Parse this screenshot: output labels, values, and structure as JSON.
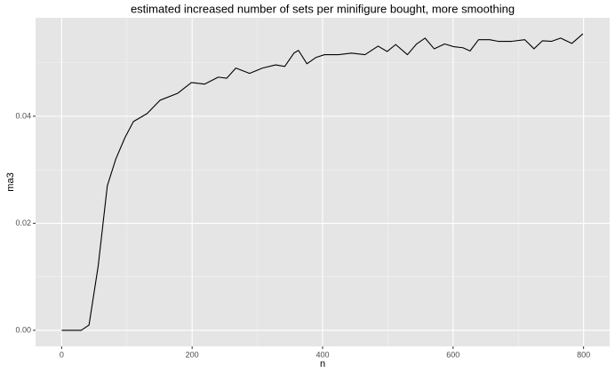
{
  "chart_data": {
    "type": "line",
    "title": "estimated increased number of sets per minifigure bought, more smoothing",
    "x_label": "n",
    "y_label": "ma3",
    "x": [
      0,
      30,
      42,
      56,
      70,
      83,
      97,
      110,
      131,
      151,
      178,
      199,
      219,
      240,
      253,
      267,
      288,
      308,
      328,
      342,
      356,
      363,
      376,
      390,
      403,
      424,
      444,
      465,
      485,
      499,
      512,
      530,
      544,
      557,
      571,
      587,
      601,
      615,
      626,
      639,
      656,
      669,
      690,
      710,
      724,
      737,
      751,
      765,
      782,
      799
    ],
    "series": [
      {
        "name": "ma3",
        "color": "#000000",
        "values": [
          0,
          0,
          0.001,
          0.012,
          0.027,
          0.032,
          0.036,
          0.039,
          0.0405,
          0.043,
          0.0443,
          0.0463,
          0.046,
          0.0473,
          0.0471,
          0.049,
          0.048,
          0.049,
          0.0496,
          0.0493,
          0.0518,
          0.0523,
          0.0498,
          0.051,
          0.0515,
          0.0515,
          0.0518,
          0.0515,
          0.0531,
          0.0521,
          0.0534,
          0.0515,
          0.0535,
          0.0546,
          0.0526,
          0.0535,
          0.053,
          0.0528,
          0.0522,
          0.0543,
          0.0543,
          0.054,
          0.054,
          0.0543,
          0.0526,
          0.0541,
          0.054,
          0.0546,
          0.0536,
          0.0554
        ]
      }
    ],
    "xlim": [
      -40,
      840
    ],
    "ylim": [
      -0.003,
      0.0584
    ],
    "xticks": [
      0,
      200,
      400,
      600,
      800
    ],
    "yticks": [
      {
        "value": 0,
        "label": "0.00"
      },
      {
        "value": 0.02,
        "label": "0.02"
      },
      {
        "value": 0.04,
        "label": "0.04"
      }
    ],
    "minor_xticks": [
      100,
      300,
      500,
      700
    ],
    "minor_yticks": [
      0.01,
      0.03,
      0.05
    ],
    "grid": true
  }
}
